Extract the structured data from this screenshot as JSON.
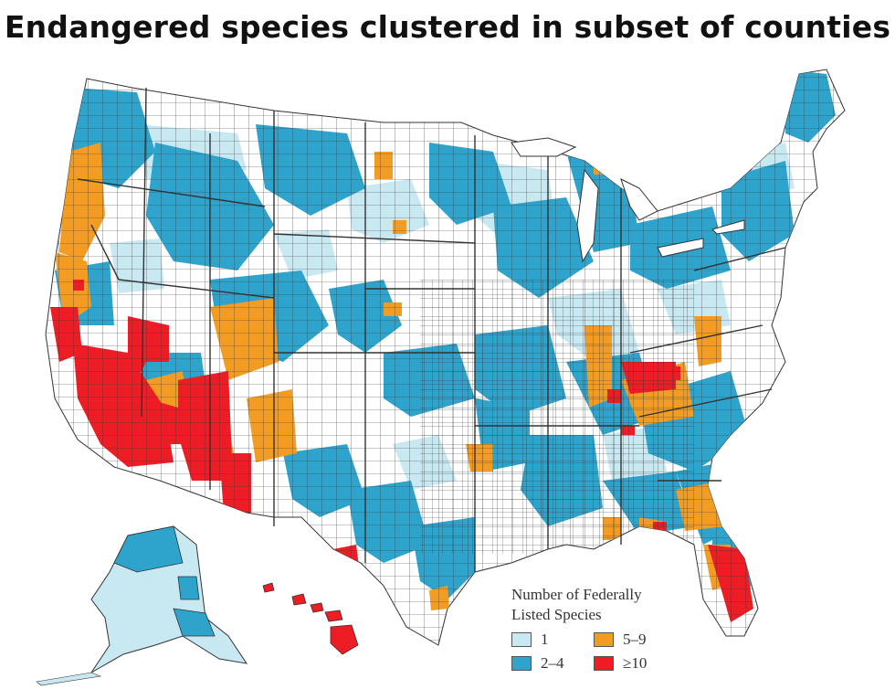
{
  "title": "Endangered species clustered in subset of counties",
  "legend": {
    "title_line1": "Number of Federally",
    "title_line2": "Listed Species",
    "items": [
      {
        "label": "1",
        "color": "#c8e8f2"
      },
      {
        "label": "5–9",
        "color": "#f39c24"
      },
      {
        "label": "2–4",
        "color": "#2ea3cc"
      },
      {
        "label": "≥10",
        "color": "#ee1c24"
      }
    ]
  },
  "colors": {
    "cat_1": "#c8e8f2",
    "cat_2_4": "#2ea3cc",
    "cat_5_9": "#f39c24",
    "cat_10_plus": "#ee1c24",
    "none": "#ffffff",
    "border": "#333333"
  }
}
